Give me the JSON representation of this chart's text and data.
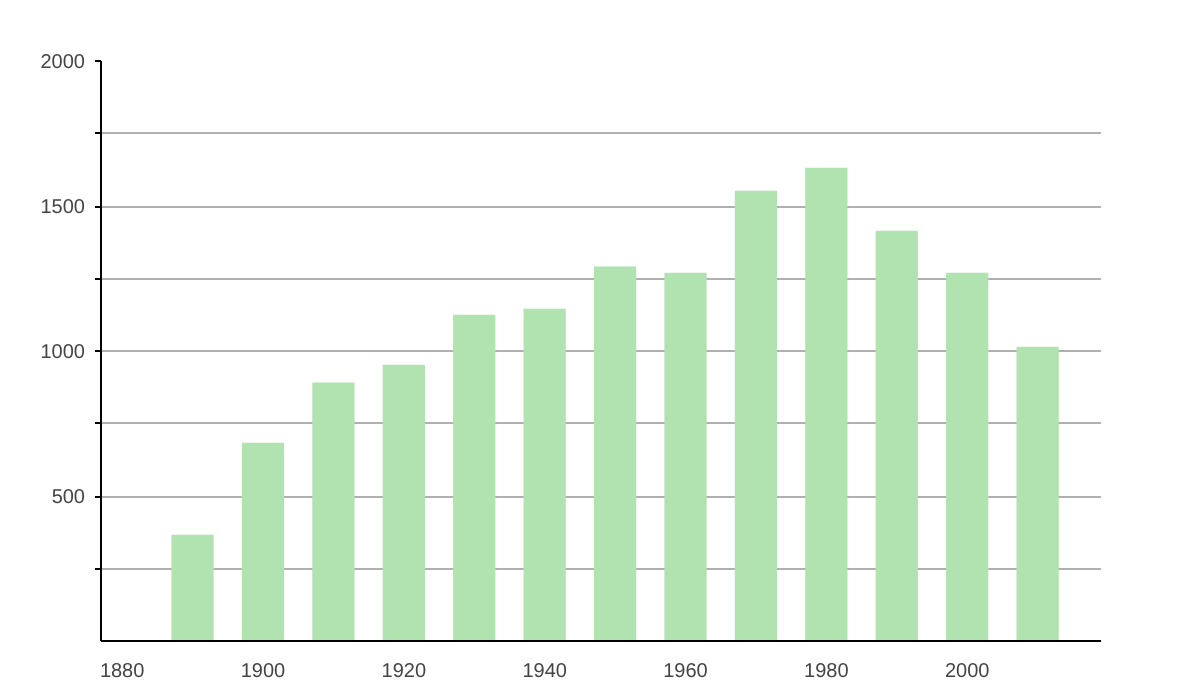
{
  "chart_data": {
    "type": "bar",
    "x": [
      1890,
      1900,
      1910,
      1920,
      1930,
      1940,
      1950,
      1960,
      1970,
      1980,
      1990,
      2000,
      2010
    ],
    "values": [
      366,
      684,
      891,
      953,
      1125,
      1146,
      1291,
      1270,
      1553,
      1632,
      1415,
      1270,
      1015
    ],
    "color": "#b0e3b0",
    "xlim": [
      1877,
      2019
    ],
    "xticks": [
      1880,
      1900,
      1920,
      1940,
      1960,
      1980,
      2000
    ],
    "ylim": [
      0,
      2000
    ],
    "yticks": [
      {
        "value": 250,
        "label": null
      },
      500,
      {
        "value": 750,
        "label": null
      },
      1000,
      {
        "value": 1250,
        "label": null
      },
      1500,
      {
        "value": 1750,
        "label": null
      },
      2000
    ],
    "grid": "y"
  }
}
